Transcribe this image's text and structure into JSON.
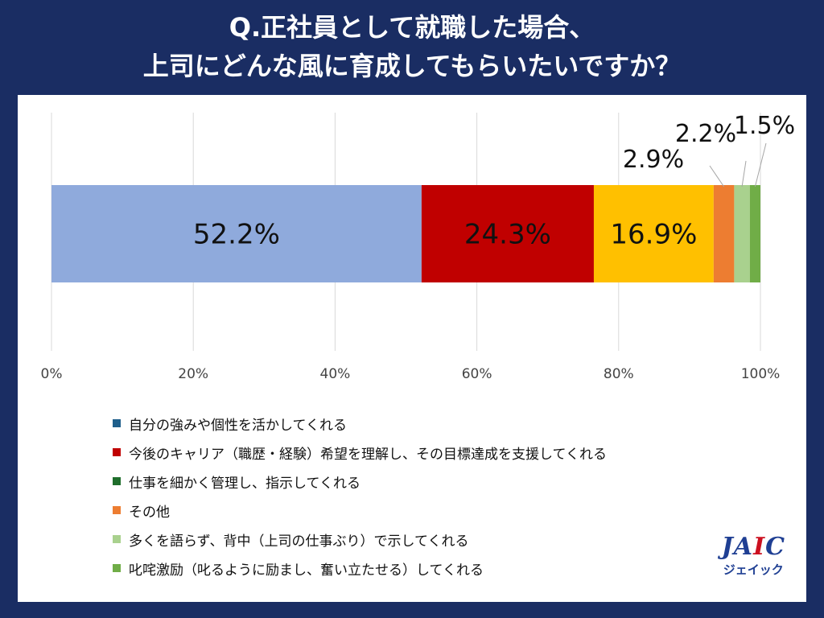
{
  "header": {
    "title_line1": "Q.正社員として就職した場合、",
    "title_line2": "上司にどんな風に育成してもらいたいですか？"
  },
  "chart_data": {
    "type": "bar",
    "orientation": "horizontal-stacked-100",
    "xlim": [
      0,
      100
    ],
    "x_ticks": [
      "0%",
      "20%",
      "40%",
      "60%",
      "80%",
      "100%"
    ],
    "grid": true,
    "legend_position": "bottom",
    "series": [
      {
        "name": "自分の強みや個性を活かしてくれる",
        "value": 52.2,
        "label": "52.2%",
        "color": "#8faadc",
        "legend_color": "#1f5f8b"
      },
      {
        "name": "今後のキャリア（職歴・経験）希望を理解し、その目標達成を支援してくれる",
        "value": 24.3,
        "label": "24.3%",
        "color": "#c00000",
        "legend_color": "#c00000"
      },
      {
        "name": "仕事を細かく管理し、指示してくれる",
        "value": 16.9,
        "label": "16.9%",
        "color": "#ffc000",
        "legend_color": "#1f6e2c"
      },
      {
        "name": "その他",
        "value": 2.9,
        "label": "2.9%",
        "color": "#ed7d31",
        "legend_color": "#ed7d31"
      },
      {
        "name": "多くを語らず、背中（上司の仕事ぶり）で示してくれる",
        "value": 2.2,
        "label": "2.2%",
        "color": "#a9d18e",
        "legend_color": "#a9d18e"
      },
      {
        "name": "叱咤激励（叱るように励まし、奮い立たせる）してくれる",
        "value": 1.5,
        "label": "1.5%",
        "color": "#70ad47",
        "legend_color": "#70ad47"
      }
    ]
  },
  "logo": {
    "mark_left": "JA",
    "mark_dot": "I",
    "mark_right": "C",
    "sub": "ジェイック"
  }
}
